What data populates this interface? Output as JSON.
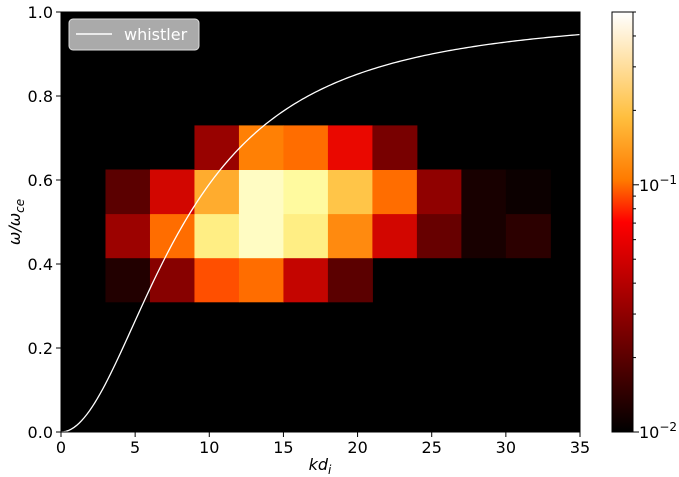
{
  "chart_data": {
    "type": "heatmap",
    "xlabel": "kd",
    "xlabel_sub": "i",
    "ylabel": "ω/ω",
    "ylabel_sub": "ce",
    "xlim": [
      0,
      35
    ],
    "ylim": [
      0,
      1.0
    ],
    "x_ticks": [
      0,
      5,
      10,
      15,
      20,
      25,
      30,
      35
    ],
    "x_tick_labels": [
      "0",
      "5",
      "10",
      "15",
      "20",
      "25",
      "30",
      "35"
    ],
    "y_ticks": [
      0.0,
      0.2,
      0.4,
      0.6,
      0.8,
      1.0
    ],
    "y_tick_labels": [
      "0.0",
      "0.2",
      "0.4",
      "0.6",
      "0.8",
      "1.0"
    ],
    "background": "#000000",
    "cells": [
      {
        "x0": 3,
        "x1": 6,
        "y0": 0.31,
        "y1": 0.415,
        "value": 0.013
      },
      {
        "x0": 6,
        "x1": 9,
        "y0": 0.31,
        "y1": 0.415,
        "value": 0.028
      },
      {
        "x0": 9,
        "x1": 12,
        "y0": 0.31,
        "y1": 0.415,
        "value": 0.09
      },
      {
        "x0": 12,
        "x1": 15,
        "y0": 0.31,
        "y1": 0.415,
        "value": 0.1
      },
      {
        "x0": 15,
        "x1": 18,
        "y0": 0.31,
        "y1": 0.415,
        "value": 0.045
      },
      {
        "x0": 18,
        "x1": 21,
        "y0": 0.31,
        "y1": 0.415,
        "value": 0.02
      },
      {
        "x0": 3,
        "x1": 6,
        "y0": 0.415,
        "y1": 0.52,
        "value": 0.033
      },
      {
        "x0": 6,
        "x1": 9,
        "y0": 0.415,
        "y1": 0.52,
        "value": 0.1
      },
      {
        "x0": 9,
        "x1": 12,
        "y0": 0.415,
        "y1": 0.52,
        "value": 0.3
      },
      {
        "x0": 12,
        "x1": 15,
        "y0": 0.415,
        "y1": 0.52,
        "value": 0.4
      },
      {
        "x0": 15,
        "x1": 18,
        "y0": 0.415,
        "y1": 0.52,
        "value": 0.3
      },
      {
        "x0": 18,
        "x1": 21,
        "y0": 0.415,
        "y1": 0.52,
        "value": 0.12
      },
      {
        "x0": 21,
        "x1": 24,
        "y0": 0.415,
        "y1": 0.52,
        "value": 0.05
      },
      {
        "x0": 24,
        "x1": 27,
        "y0": 0.415,
        "y1": 0.52,
        "value": 0.022
      },
      {
        "x0": 27,
        "x1": 30,
        "y0": 0.415,
        "y1": 0.52,
        "value": 0.012
      },
      {
        "x0": 30,
        "x1": 33,
        "y0": 0.415,
        "y1": 0.52,
        "value": 0.014
      },
      {
        "x0": 3,
        "x1": 6,
        "y0": 0.52,
        "y1": 0.625,
        "value": 0.02
      },
      {
        "x0": 6,
        "x1": 9,
        "y0": 0.52,
        "y1": 0.625,
        "value": 0.05
      },
      {
        "x0": 9,
        "x1": 12,
        "y0": 0.52,
        "y1": 0.625,
        "value": 0.16
      },
      {
        "x0": 12,
        "x1": 15,
        "y0": 0.52,
        "y1": 0.625,
        "value": 0.4
      },
      {
        "x0": 15,
        "x1": 18,
        "y0": 0.52,
        "y1": 0.625,
        "value": 0.35
      },
      {
        "x0": 18,
        "x1": 21,
        "y0": 0.52,
        "y1": 0.625,
        "value": 0.2
      },
      {
        "x0": 21,
        "x1": 24,
        "y0": 0.52,
        "y1": 0.625,
        "value": 0.1
      },
      {
        "x0": 24,
        "x1": 27,
        "y0": 0.52,
        "y1": 0.625,
        "value": 0.03
      },
      {
        "x0": 27,
        "x1": 30,
        "y0": 0.52,
        "y1": 0.625,
        "value": 0.012
      },
      {
        "x0": 30,
        "x1": 33,
        "y0": 0.52,
        "y1": 0.625,
        "value": 0.011
      },
      {
        "x0": 9,
        "x1": 12,
        "y0": 0.625,
        "y1": 0.73,
        "value": 0.032
      },
      {
        "x0": 12,
        "x1": 15,
        "y0": 0.625,
        "y1": 0.73,
        "value": 0.11
      },
      {
        "x0": 15,
        "x1": 18,
        "y0": 0.625,
        "y1": 0.73,
        "value": 0.1
      },
      {
        "x0": 18,
        "x1": 21,
        "y0": 0.625,
        "y1": 0.73,
        "value": 0.06
      },
      {
        "x0": 21,
        "x1": 24,
        "y0": 0.625,
        "y1": 0.73,
        "value": 0.025
      }
    ],
    "series": [
      {
        "name": "whistler",
        "color": "#ffffff",
        "curve": "ω/ω_ce = k²/(1+k²), k = kd_i × 0.12"
      }
    ],
    "colorbar": {
      "scale": "log",
      "vmin": 0.01,
      "vmax": 0.5,
      "colormap": "afmhot",
      "tick_labels": [
        {
          "value": 0.01,
          "base": "10",
          "exp": "−2"
        },
        {
          "value": 0.1,
          "base": "10",
          "exp": "−1"
        }
      ]
    },
    "legend": {
      "placement": "top-left",
      "entries": [
        "whistler"
      ]
    },
    "grid": false
  }
}
